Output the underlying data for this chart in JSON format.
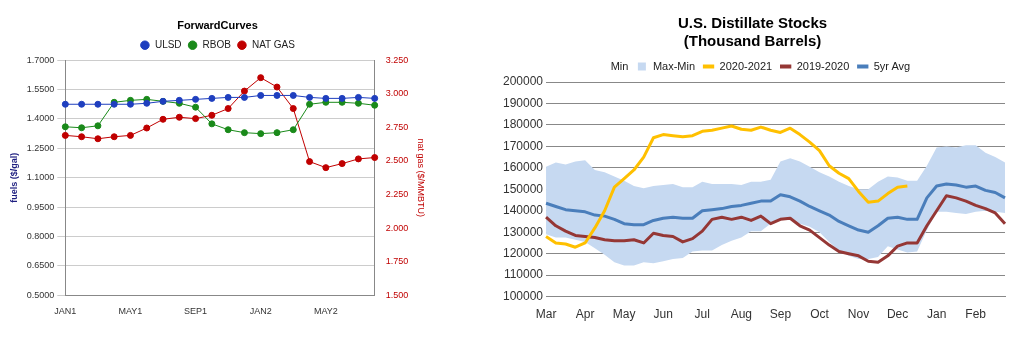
{
  "chart_data": [
    {
      "type": "line",
      "title": "ForwardCurves",
      "ylabel": "fuels ($/gal)",
      "y2label": "nat gas ($/MMBTU)",
      "categories": [
        "JAN1",
        null,
        null,
        null,
        "MAY1",
        null,
        null,
        null,
        "SEP1",
        null,
        null,
        null,
        "JAN2",
        null,
        null,
        null,
        "MAY2",
        null,
        null,
        null
      ],
      "series": [
        {
          "name": "ULSD",
          "color": "#1f3fbf",
          "values": [
            1.475,
            1.475,
            1.475,
            1.475,
            1.475,
            1.48,
            1.49,
            1.495,
            1.5,
            1.505,
            1.51,
            1.51,
            1.52,
            1.52,
            1.52,
            1.51,
            1.505,
            1.505,
            1.51,
            1.505
          ]
        },
        {
          "name": "RBOB",
          "color": "#1a8a1a",
          "values": [
            1.36,
            1.355,
            1.365,
            1.485,
            1.495,
            1.5,
            1.49,
            1.48,
            1.46,
            1.375,
            1.345,
            1.33,
            1.325,
            1.33,
            1.345,
            1.475,
            1.485,
            1.485,
            1.48,
            1.47
          ]
        },
        {
          "name": "NAT GAS",
          "color": "#c00000",
          "axis": "y2",
          "values": [
            2.69,
            2.68,
            2.665,
            2.68,
            2.69,
            2.745,
            2.81,
            2.825,
            2.815,
            2.84,
            2.89,
            3.02,
            3.12,
            3.05,
            2.89,
            2.495,
            2.45,
            2.48,
            2.515,
            2.525
          ]
        }
      ],
      "ylim": [
        0.5,
        1.7
      ],
      "yticks": [
        {
          "value": 0.5,
          "label": "0.5000"
        },
        {
          "value": 0.65,
          "label": "0.6500"
        },
        {
          "value": 0.8,
          "label": "0.8000"
        },
        {
          "value": 0.95,
          "label": "0.9500"
        },
        {
          "value": 1.1,
          "label": "1.1000"
        },
        {
          "value": 1.25,
          "label": "1.2500"
        },
        {
          "value": 1.4,
          "label": "1.4000"
        },
        {
          "value": 1.55,
          "label": "1.5500"
        },
        {
          "value": 1.7,
          "label": "1.7000"
        }
      ],
      "y2lim": [
        1.5,
        3.25
      ],
      "y2ticks": [
        {
          "value": 1.5,
          "label": "1.500"
        },
        {
          "value": 1.75,
          "label": "1.750"
        },
        {
          "value": 2,
          "label": "2.000"
        },
        {
          "value": 2.25,
          "label": "2.250"
        },
        {
          "value": 2.5,
          "label": "2.500"
        },
        {
          "value": 2.75,
          "label": "2.750"
        },
        {
          "value": 3,
          "label": "3.000"
        },
        {
          "value": 3.25,
          "label": "3.250"
        }
      ],
      "grid": "y",
      "legend": "top",
      "marker": "circle"
    },
    {
      "type": "line",
      "title": "U.S. Distillate Stocks\n(Thousand Barrels)",
      "annotations": [
        "Min"
      ],
      "categories": [
        "Mar",
        null,
        null,
        null,
        "Apr",
        null,
        null,
        null,
        "May",
        null,
        null,
        null,
        "Jun",
        null,
        null,
        null,
        "Jul",
        null,
        null,
        null,
        "Aug",
        null,
        null,
        null,
        "Sep",
        null,
        null,
        null,
        "Oct",
        null,
        null,
        null,
        "Nov",
        null,
        null,
        null,
        "Dec",
        null,
        null,
        null,
        "Jan",
        null,
        null,
        null,
        "Feb",
        null,
        null,
        null
      ],
      "series": [
        {
          "name": "Max-Min",
          "type": "area",
          "color": "#c6d9f1",
          "values": [
            null,
            null,
            null,
            null,
            null,
            null,
            null,
            null,
            null,
            null,
            null,
            null,
            null,
            null,
            null,
            null,
            null,
            null,
            null,
            null,
            null,
            null,
            null,
            null,
            null,
            null,
            null,
            null,
            null,
            null,
            null,
            null,
            null,
            null,
            null,
            null,
            null,
            null,
            null,
            null,
            null,
            null,
            null,
            null,
            null,
            null,
            null,
            null
          ],
          "lower": [
            129000,
            127500,
            127500,
            126500,
            125500,
            122500,
            119500,
            116000,
            114500,
            114500,
            116000,
            115500,
            116500,
            117500,
            118000,
            121000,
            121500,
            121500,
            124000,
            126000,
            127500,
            130500,
            130500,
            134000,
            136000,
            136000,
            134000,
            132500,
            130000,
            125500,
            121500,
            119000,
            117500,
            117500,
            118500,
            123500,
            122000,
            120500,
            121000,
            131000,
            139500,
            139500,
            139000,
            138500,
            139500,
            140000,
            139500,
            139000
          ],
          "upper": [
            160500,
            162500,
            161500,
            163000,
            163500,
            159000,
            158000,
            156000,
            154000,
            151500,
            150500,
            151500,
            152000,
            152500,
            151000,
            151000,
            153500,
            152500,
            152500,
            152500,
            152000,
            153500,
            153500,
            154500,
            163000,
            164500,
            163000,
            160500,
            158000,
            156000,
            153500,
            151500,
            150000,
            150000,
            153500,
            156000,
            155500,
            154000,
            154000,
            161000,
            169500,
            170000,
            169500,
            170500,
            170500,
            167000,
            165000,
            162500
          ]
        },
        {
          "name": "2020-2021",
          "color": "#ffc000",
          "values": [
            128000,
            125000,
            124500,
            123000,
            125000,
            132000,
            140000,
            151000,
            155000,
            159000,
            165000,
            174000,
            175500,
            175000,
            174500,
            175000,
            177000,
            177500,
            178500,
            179500,
            178000,
            177500,
            179000,
            177500,
            176500,
            178500,
            175500,
            172000,
            168000,
            161000,
            157500,
            155000,
            149000,
            144000,
            144500,
            148000,
            151000,
            151500,
            null,
            null,
            null,
            null,
            null,
            null,
            null,
            null,
            null,
            null
          ]
        },
        {
          "name": "2019-2020",
          "color": "#953735",
          "values": [
            137000,
            133000,
            130500,
            128500,
            128000,
            127500,
            126500,
            126000,
            126000,
            126500,
            125000,
            129500,
            128500,
            128000,
            125500,
            127000,
            130500,
            136000,
            137000,
            136000,
            137000,
            135500,
            137500,
            134000,
            136000,
            136500,
            133000,
            131000,
            127500,
            124000,
            121000,
            120000,
            119000,
            116500,
            116000,
            119000,
            123500,
            125000,
            125000,
            133000,
            140000,
            147000,
            146000,
            144500,
            142500,
            141000,
            139000,
            134000
          ]
        },
        {
          "name": "5yr Avg",
          "color": "#4a7ebb",
          "values": [
            143500,
            142000,
            140500,
            140000,
            139500,
            138000,
            137500,
            136000,
            134000,
            133500,
            133500,
            135500,
            136500,
            137000,
            136500,
            136500,
            140000,
            140500,
            141000,
            142000,
            142500,
            143500,
            144500,
            144500,
            147500,
            146500,
            144500,
            142000,
            140000,
            138000,
            135000,
            133000,
            131000,
            130000,
            133000,
            136500,
            137000,
            136000,
            136000,
            146000,
            151500,
            152500,
            152000,
            151000,
            151500,
            149500,
            148500,
            146000
          ]
        }
      ],
      "ylim": [
        100000,
        200000
      ],
      "yticks": [
        100000,
        110000,
        120000,
        130000,
        140000,
        150000,
        160000,
        170000,
        180000,
        190000,
        200000
      ],
      "grid": "y",
      "legend": "top",
      "marker": "none"
    }
  ]
}
